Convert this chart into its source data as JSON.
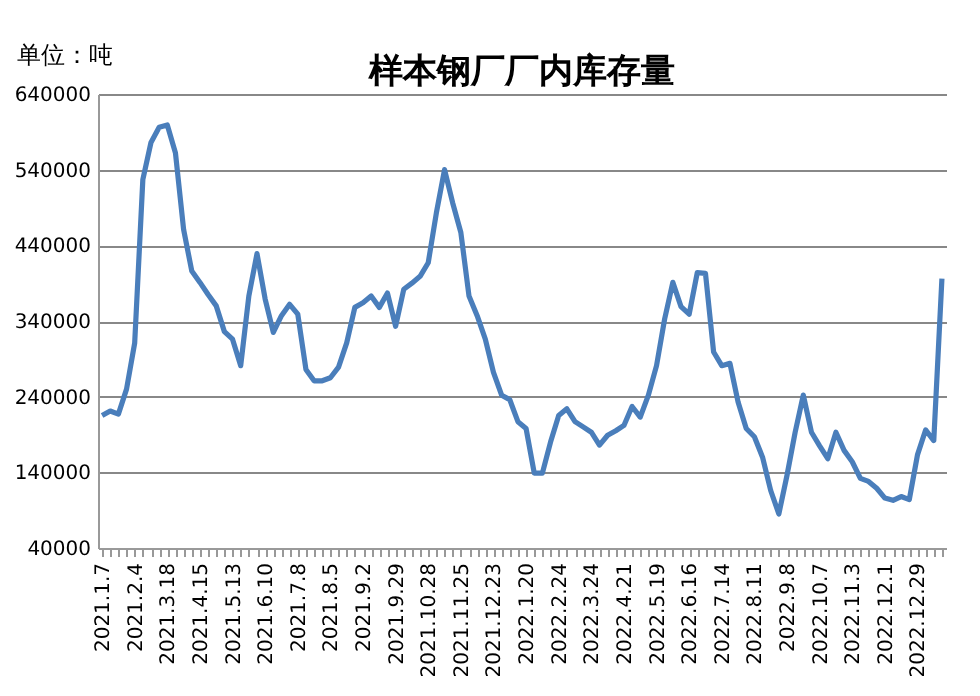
{
  "chart_data": {
    "type": "line",
    "title": "样本钢厂厂内库存量",
    "ylabel": "单位：吨",
    "categories": [
      "2021.1.7",
      null,
      null,
      null,
      "2021.2.4",
      null,
      null,
      null,
      "2021.3.18",
      null,
      null,
      null,
      "2021.4.15",
      null,
      null,
      null,
      "2021.5.13",
      null,
      null,
      null,
      "2021.6.10",
      null,
      null,
      null,
      "2021.7.8",
      null,
      null,
      null,
      "2021.8.5",
      null,
      null,
      null,
      "2021.9.2",
      null,
      null,
      null,
      "2021.9.29",
      null,
      null,
      null,
      "2021.10.28",
      null,
      null,
      null,
      "2021.11.25",
      null,
      null,
      null,
      "2021.12.23",
      null,
      null,
      null,
      "2022.1.20",
      null,
      null,
      null,
      "2022.2.24",
      null,
      null,
      null,
      "2022.3.24",
      null,
      null,
      null,
      "2022.4.21",
      null,
      null,
      null,
      "2022.5.19",
      null,
      null,
      null,
      "2022.6.16",
      null,
      null,
      null,
      "2022.7.14",
      null,
      null,
      null,
      "2022.8.11",
      null,
      null,
      null,
      "2022.9.8",
      null,
      null,
      null,
      "2022.10.7",
      null,
      null,
      null,
      "2022.11.3",
      null,
      null,
      null,
      "2022.12.1",
      null,
      null,
      null,
      "2022.12.29",
      null,
      null,
      null
    ],
    "series": [
      {
        "color": "#4a7ebb",
        "values": [
          215000,
          221000,
          217000,
          250000,
          311000,
          527000,
          576000,
          596000,
          599000,
          562000,
          461000,
          406000,
          391000,
          375000,
          360000,
          326000,
          316000,
          281000,
          373000,
          429000,
          369000,
          325000,
          347000,
          362000,
          349000,
          276000,
          261000,
          261000,
          265000,
          279000,
          311000,
          358000,
          364000,
          373000,
          358000,
          377000,
          333000,
          382000,
          390000,
          399000,
          417000,
          483000,
          540000,
          496000,
          457000,
          373000,
          347000,
          316000,
          272000,
          242000,
          236000,
          207000,
          198000,
          139000,
          139000,
          180000,
          215000,
          224000,
          207000,
          200000,
          193000,
          176000,
          189000,
          195000,
          202000,
          227000,
          213000,
          242000,
          281000,
          343000,
          391000,
          359000,
          349000,
          404000,
          403000,
          299000,
          281000,
          284000,
          233000,
          198000,
          187000,
          160000,
          116000,
          85000,
          136000,
          193000,
          242000,
          193000,
          175000,
          158000,
          193000,
          169000,
          154000,
          132000,
          128000,
          119000,
          106000,
          103000,
          108000,
          104000,
          163000,
          196000,
          182000,
          396000
        ]
      }
    ],
    "ylim": [
      40000,
      640000
    ],
    "yticks": [
      40000,
      140000,
      240000,
      340000,
      440000,
      540000,
      640000
    ],
    "grid": "y"
  }
}
